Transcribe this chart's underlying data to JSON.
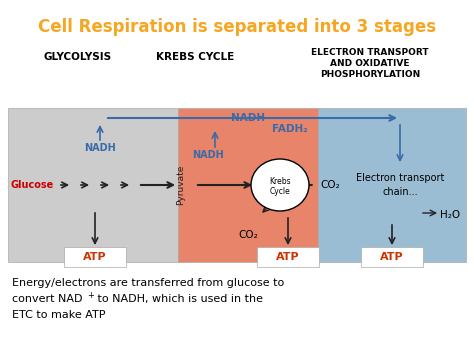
{
  "title": "Cell Respiration is separated into 3 stages",
  "title_color": "#F5A623",
  "bg_color": "#FFFFFF",
  "section1_color": "#CCCCCC",
  "section2_color": "#E8846A",
  "section3_color": "#9BBDD4",
  "label1": "GLYCOLYSIS",
  "label2": "KREBS CYCLE",
  "label3": "ELECTRON TRANSPORT\nAND OXIDATIVE\nPHOSPHORYLATION",
  "nadh_color": "#3A6BA8",
  "atp_color": "#CC3300",
  "glucose_color": "#CC0000",
  "arrow_color": "#222222",
  "krebs_fill": "#FFFFFF",
  "pyruvate_color": "#222222",
  "footer1": "Energy/electrons are transferred from glucose to",
  "footer2": "convert NAD",
  "footer2b": " to NADH, which is used in the",
  "footer3": "ETC to make ATP"
}
